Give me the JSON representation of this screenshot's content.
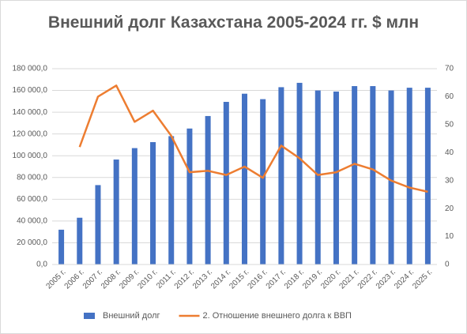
{
  "chart_data": {
    "type": "bar",
    "title": "Внешний долг Казахстана 2005-2024 гг. $ млн",
    "categories": [
      "2005 г.",
      "2006 г.",
      "2007 г.",
      "2008 г.",
      "2009 г.",
      "2010 г.",
      "2011 г.",
      "2012 г.",
      "2013 г.",
      "2014 г.",
      "2015 г.",
      "2016 г.",
      "2017 г.",
      "2018 г.",
      "2019 г.",
      "2020 г.",
      "2021 г.",
      "2022 г.",
      "2023 г.",
      "2024 г.",
      "2025 г."
    ],
    "series": [
      {
        "name": "Внешний долг",
        "type": "bar",
        "color": "#4472c4",
        "values": [
          32000,
          43000,
          73000,
          96500,
          107000,
          112500,
          118000,
          125000,
          136500,
          149500,
          157000,
          152000,
          163000,
          167000,
          160000,
          159000,
          164000,
          164000,
          160000,
          162500,
          162500
        ]
      },
      {
        "name": "2. Отношение внешнего долга к ВВП",
        "type": "line",
        "axis": "y2",
        "color": "#ed7d31",
        "values": [
          null,
          42,
          60,
          64,
          51,
          55,
          46,
          33,
          33.5,
          32,
          35,
          31,
          42.5,
          38,
          32,
          33,
          36,
          34,
          30,
          27.5,
          26
        ]
      }
    ],
    "ylim": [
      0,
      180000
    ],
    "yticks": [
      {
        "value": 0,
        "label": "0,0"
      },
      {
        "value": 20000,
        "label": "20 000,0"
      },
      {
        "value": 40000,
        "label": "40 000,0"
      },
      {
        "value": 60000,
        "label": "60 000,0"
      },
      {
        "value": 80000,
        "label": "80 000,0"
      },
      {
        "value": 100000,
        "label": "100 000,0"
      },
      {
        "value": 120000,
        "label": "120 000,0"
      },
      {
        "value": 140000,
        "label": "140 000,0"
      },
      {
        "value": 160000,
        "label": "160 000,0"
      },
      {
        "value": 180000,
        "label": "180 000,0"
      }
    ],
    "y2lim": [
      0,
      70
    ],
    "y2ticks": [
      0,
      10,
      20,
      30,
      40,
      50,
      60,
      70
    ],
    "grid": true,
    "legend": "bottom"
  }
}
